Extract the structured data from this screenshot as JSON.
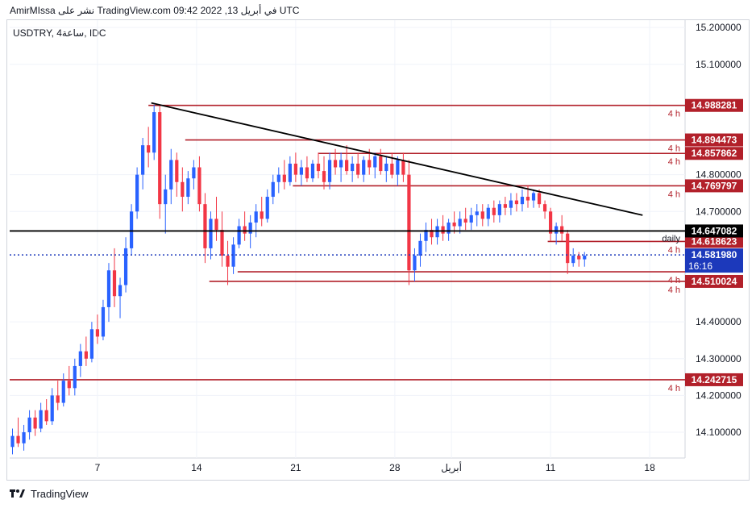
{
  "header": {
    "publish_line": "AmirMIssa نشر على TradingView.com في أبريل 13, 2022 09:42 UTC"
  },
  "footer": {
    "brand": "TradingView"
  },
  "chart_data": {
    "type": "candlestick",
    "title": "USDTRY, 4ساعة, IDC",
    "yaxis": {
      "ticks": [
        15.2,
        15.1,
        14.8,
        14.7,
        14.4,
        14.3,
        14.2,
        14.1
      ],
      "tick_labels": [
        "15.200000",
        "15.100000",
        "14.800000",
        "14.700000",
        "14.400000",
        "14.300000",
        "14.200000",
        "14.100000"
      ],
      "range": [
        14.03,
        15.22
      ]
    },
    "xaxis": {
      "tick_labels": [
        "7",
        "14",
        "21",
        "28",
        "أبريل",
        "11",
        "18"
      ],
      "ticks_day_index": [
        7,
        14,
        21,
        28,
        32,
        39,
        46
      ],
      "range_day_index": [
        0.8,
        48.5
      ]
    },
    "colors": {
      "up": "#2962ff",
      "down": "#f23645",
      "level": "#b2202a",
      "trend": "#000000",
      "price_line": "#1c39bb"
    },
    "levels": [
      {
        "price": 14.988281,
        "label": "14.988281",
        "tf": "4 h",
        "start_day": 10.6
      },
      {
        "price": 14.894473,
        "label": "14.894473",
        "tf": "4 h",
        "start_day": 13.2
      },
      {
        "price": 14.857862,
        "label": "14.857862",
        "tf": "4 h",
        "start_day": 22.6
      },
      {
        "price": 14.769797,
        "label": "14.769797",
        "tf": "4 h",
        "start_day": 20.8
      },
      {
        "price": 14.618623,
        "label": "14.618623",
        "tf": "4 h",
        "start_day": 38.8
      },
      {
        "price": 14.536,
        "label": "",
        "tf": "4 h",
        "start_day": 16.9
      },
      {
        "price": 14.510024,
        "label": "14.510024",
        "tf": "4 h",
        "start_day": 14.9
      },
      {
        "price": 14.242715,
        "label": "14.242715",
        "tf": "4 h",
        "start_day": 0.8
      }
    ],
    "daily_level": {
      "price": 14.647082,
      "label": "14.647082",
      "tf": "daily"
    },
    "current_price": {
      "price": 14.58198,
      "label": "14.581980",
      "countdown": "16:16"
    },
    "trendline": {
      "start": {
        "day": 10.8,
        "price": 14.995
      },
      "end": {
        "day": 45.5,
        "price": 14.69
      }
    },
    "candles": [
      {
        "day": 1.0,
        "o": 14.06,
        "h": 14.11,
        "l": 14.04,
        "c": 14.09
      },
      {
        "day": 1.4,
        "o": 14.09,
        "h": 14.14,
        "l": 14.06,
        "c": 14.07
      },
      {
        "day": 1.8,
        "o": 14.07,
        "h": 14.12,
        "l": 14.05,
        "c": 14.1
      },
      {
        "day": 2.2,
        "o": 14.1,
        "h": 14.16,
        "l": 14.08,
        "c": 14.14
      },
      {
        "day": 2.6,
        "o": 14.14,
        "h": 14.16,
        "l": 14.09,
        "c": 14.11
      },
      {
        "day": 3.0,
        "o": 14.11,
        "h": 14.18,
        "l": 14.1,
        "c": 14.16
      },
      {
        "day": 3.4,
        "o": 14.16,
        "h": 14.19,
        "l": 14.12,
        "c": 14.13
      },
      {
        "day": 3.8,
        "o": 14.13,
        "h": 14.22,
        "l": 14.12,
        "c": 14.2
      },
      {
        "day": 4.2,
        "o": 14.2,
        "h": 14.24,
        "l": 14.16,
        "c": 14.18
      },
      {
        "day": 4.6,
        "o": 14.18,
        "h": 14.26,
        "l": 14.17,
        "c": 14.24
      },
      {
        "day": 5.0,
        "o": 14.24,
        "h": 14.28,
        "l": 14.2,
        "c": 14.22
      },
      {
        "day": 5.4,
        "o": 14.22,
        "h": 14.3,
        "l": 14.2,
        "c": 14.28
      },
      {
        "day": 5.8,
        "o": 14.28,
        "h": 14.34,
        "l": 14.25,
        "c": 14.32
      },
      {
        "day": 6.2,
        "o": 14.32,
        "h": 14.36,
        "l": 14.28,
        "c": 14.3
      },
      {
        "day": 6.6,
        "o": 14.3,
        "h": 14.4,
        "l": 14.29,
        "c": 14.38
      },
      {
        "day": 7.0,
        "o": 14.38,
        "h": 14.42,
        "l": 14.34,
        "c": 14.36
      },
      {
        "day": 7.4,
        "o": 14.36,
        "h": 14.46,
        "l": 14.35,
        "c": 14.44
      },
      {
        "day": 7.8,
        "o": 14.44,
        "h": 14.56,
        "l": 14.4,
        "c": 14.54
      },
      {
        "day": 8.2,
        "o": 14.54,
        "h": 14.6,
        "l": 14.44,
        "c": 14.47
      },
      {
        "day": 8.6,
        "o": 14.47,
        "h": 14.52,
        "l": 14.41,
        "c": 14.5
      },
      {
        "day": 9.0,
        "o": 14.5,
        "h": 14.63,
        "l": 14.48,
        "c": 14.6
      },
      {
        "day": 9.4,
        "o": 14.6,
        "h": 14.72,
        "l": 14.58,
        "c": 14.7
      },
      {
        "day": 9.8,
        "o": 14.7,
        "h": 14.82,
        "l": 14.68,
        "c": 14.8
      },
      {
        "day": 10.2,
        "o": 14.8,
        "h": 14.9,
        "l": 14.76,
        "c": 14.88
      },
      {
        "day": 10.6,
        "o": 14.88,
        "h": 14.93,
        "l": 14.82,
        "c": 14.86
      },
      {
        "day": 11.0,
        "o": 14.86,
        "h": 14.99,
        "l": 14.84,
        "c": 14.97
      },
      {
        "day": 11.4,
        "o": 14.97,
        "h": 14.99,
        "l": 14.68,
        "c": 14.72
      },
      {
        "day": 11.8,
        "o": 14.72,
        "h": 14.8,
        "l": 14.64,
        "c": 14.76
      },
      {
        "day": 12.2,
        "o": 14.76,
        "h": 14.87,
        "l": 14.72,
        "c": 14.84
      },
      {
        "day": 12.6,
        "o": 14.84,
        "h": 14.86,
        "l": 14.74,
        "c": 14.78
      },
      {
        "day": 13.0,
        "o": 14.78,
        "h": 14.82,
        "l": 14.7,
        "c": 14.74
      },
      {
        "day": 13.4,
        "o": 14.74,
        "h": 14.81,
        "l": 14.72,
        "c": 14.79
      },
      {
        "day": 13.8,
        "o": 14.79,
        "h": 14.84,
        "l": 14.76,
        "c": 14.82
      },
      {
        "day": 14.2,
        "o": 14.82,
        "h": 14.85,
        "l": 14.7,
        "c": 14.72
      },
      {
        "day": 14.6,
        "o": 14.72,
        "h": 14.75,
        "l": 14.56,
        "c": 14.6
      },
      {
        "day": 15.0,
        "o": 14.6,
        "h": 14.7,
        "l": 14.57,
        "c": 14.68
      },
      {
        "day": 15.4,
        "o": 14.68,
        "h": 14.74,
        "l": 14.62,
        "c": 14.65
      },
      {
        "day": 15.8,
        "o": 14.65,
        "h": 14.7,
        "l": 14.55,
        "c": 14.58
      },
      {
        "day": 16.2,
        "o": 14.58,
        "h": 14.62,
        "l": 14.5,
        "c": 14.55
      },
      {
        "day": 16.6,
        "o": 14.55,
        "h": 14.63,
        "l": 14.53,
        "c": 14.61
      },
      {
        "day": 17.0,
        "o": 14.61,
        "h": 14.68,
        "l": 14.6,
        "c": 14.66
      },
      {
        "day": 17.4,
        "o": 14.66,
        "h": 14.7,
        "l": 14.62,
        "c": 14.64
      },
      {
        "day": 17.8,
        "o": 14.64,
        "h": 14.69,
        "l": 14.6,
        "c": 14.67
      },
      {
        "day": 18.2,
        "o": 14.67,
        "h": 14.72,
        "l": 14.63,
        "c": 14.7
      },
      {
        "day": 18.6,
        "o": 14.7,
        "h": 14.74,
        "l": 14.66,
        "c": 14.68
      },
      {
        "day": 19.0,
        "o": 14.68,
        "h": 14.76,
        "l": 14.67,
        "c": 14.74
      },
      {
        "day": 19.4,
        "o": 14.74,
        "h": 14.8,
        "l": 14.72,
        "c": 14.78
      },
      {
        "day": 19.8,
        "o": 14.78,
        "h": 14.82,
        "l": 14.75,
        "c": 14.8
      },
      {
        "day": 20.2,
        "o": 14.8,
        "h": 14.84,
        "l": 14.76,
        "c": 14.78
      },
      {
        "day": 20.6,
        "o": 14.78,
        "h": 14.85,
        "l": 14.77,
        "c": 14.83
      },
      {
        "day": 21.0,
        "o": 14.83,
        "h": 14.86,
        "l": 14.78,
        "c": 14.8
      },
      {
        "day": 21.4,
        "o": 14.8,
        "h": 14.84,
        "l": 14.77,
        "c": 14.82
      },
      {
        "day": 21.8,
        "o": 14.82,
        "h": 14.85,
        "l": 14.78,
        "c": 14.79
      },
      {
        "day": 22.2,
        "o": 14.79,
        "h": 14.84,
        "l": 14.78,
        "c": 14.83
      },
      {
        "day": 22.6,
        "o": 14.83,
        "h": 14.86,
        "l": 14.79,
        "c": 14.81
      },
      {
        "day": 23.0,
        "o": 14.81,
        "h": 14.85,
        "l": 14.76,
        "c": 14.78
      },
      {
        "day": 23.4,
        "o": 14.78,
        "h": 14.86,
        "l": 14.76,
        "c": 14.84
      },
      {
        "day": 23.8,
        "o": 14.84,
        "h": 14.87,
        "l": 14.8,
        "c": 14.82
      },
      {
        "day": 24.2,
        "o": 14.82,
        "h": 14.86,
        "l": 14.78,
        "c": 14.84
      },
      {
        "day": 24.6,
        "o": 14.84,
        "h": 14.88,
        "l": 14.8,
        "c": 14.81
      },
      {
        "day": 25.0,
        "o": 14.81,
        "h": 14.85,
        "l": 14.78,
        "c": 14.83
      },
      {
        "day": 25.4,
        "o": 14.83,
        "h": 14.86,
        "l": 14.79,
        "c": 14.8
      },
      {
        "day": 25.8,
        "o": 14.8,
        "h": 14.85,
        "l": 14.78,
        "c": 14.84
      },
      {
        "day": 26.2,
        "o": 14.84,
        "h": 14.87,
        "l": 14.8,
        "c": 14.82
      },
      {
        "day": 26.6,
        "o": 14.82,
        "h": 14.86,
        "l": 14.79,
        "c": 14.85
      },
      {
        "day": 27.0,
        "o": 14.85,
        "h": 14.87,
        "l": 14.8,
        "c": 14.81
      },
      {
        "day": 27.4,
        "o": 14.81,
        "h": 14.85,
        "l": 14.78,
        "c": 14.83
      },
      {
        "day": 27.8,
        "o": 14.83,
        "h": 14.86,
        "l": 14.79,
        "c": 14.8
      },
      {
        "day": 28.2,
        "o": 14.8,
        "h": 14.85,
        "l": 14.77,
        "c": 14.84
      },
      {
        "day": 28.6,
        "o": 14.84,
        "h": 14.86,
        "l": 14.78,
        "c": 14.8
      },
      {
        "day": 29.0,
        "o": 14.8,
        "h": 14.84,
        "l": 14.5,
        "c": 14.54
      },
      {
        "day": 29.4,
        "o": 14.54,
        "h": 14.6,
        "l": 14.51,
        "c": 14.58
      },
      {
        "day": 29.8,
        "o": 14.58,
        "h": 14.64,
        "l": 14.55,
        "c": 14.62
      },
      {
        "day": 30.2,
        "o": 14.62,
        "h": 14.67,
        "l": 14.59,
        "c": 14.65
      },
      {
        "day": 30.6,
        "o": 14.65,
        "h": 14.68,
        "l": 14.61,
        "c": 14.63
      },
      {
        "day": 31.0,
        "o": 14.63,
        "h": 14.68,
        "l": 14.61,
        "c": 14.66
      },
      {
        "day": 31.4,
        "o": 14.66,
        "h": 14.69,
        "l": 14.62,
        "c": 14.64
      },
      {
        "day": 31.8,
        "o": 14.64,
        "h": 14.68,
        "l": 14.62,
        "c": 14.67
      },
      {
        "day": 32.2,
        "o": 14.67,
        "h": 14.7,
        "l": 14.64,
        "c": 14.66
      },
      {
        "day": 32.6,
        "o": 14.66,
        "h": 14.7,
        "l": 14.64,
        "c": 14.68
      },
      {
        "day": 33.0,
        "o": 14.68,
        "h": 14.71,
        "l": 14.65,
        "c": 14.67
      },
      {
        "day": 33.4,
        "o": 14.67,
        "h": 14.71,
        "l": 14.65,
        "c": 14.69
      },
      {
        "day": 33.8,
        "o": 14.69,
        "h": 14.72,
        "l": 14.66,
        "c": 14.7
      },
      {
        "day": 34.2,
        "o": 14.7,
        "h": 14.72,
        "l": 14.66,
        "c": 14.68
      },
      {
        "day": 34.6,
        "o": 14.68,
        "h": 14.72,
        "l": 14.66,
        "c": 14.71
      },
      {
        "day": 35.0,
        "o": 14.71,
        "h": 14.73,
        "l": 14.67,
        "c": 14.69
      },
      {
        "day": 35.4,
        "o": 14.69,
        "h": 14.73,
        "l": 14.67,
        "c": 14.72
      },
      {
        "day": 35.8,
        "o": 14.72,
        "h": 14.74,
        "l": 14.69,
        "c": 14.71
      },
      {
        "day": 36.2,
        "o": 14.71,
        "h": 14.75,
        "l": 14.69,
        "c": 14.73
      },
      {
        "day": 36.6,
        "o": 14.73,
        "h": 14.75,
        "l": 14.7,
        "c": 14.72
      },
      {
        "day": 37.0,
        "o": 14.72,
        "h": 14.76,
        "l": 14.7,
        "c": 14.74
      },
      {
        "day": 37.4,
        "o": 14.74,
        "h": 14.77,
        "l": 14.71,
        "c": 14.73
      },
      {
        "day": 37.8,
        "o": 14.73,
        "h": 14.76,
        "l": 14.71,
        "c": 14.75
      },
      {
        "day": 38.2,
        "o": 14.75,
        "h": 14.76,
        "l": 14.71,
        "c": 14.72
      },
      {
        "day": 38.6,
        "o": 14.72,
        "h": 14.73,
        "l": 14.68,
        "c": 14.7
      },
      {
        "day": 39.0,
        "o": 14.7,
        "h": 14.71,
        "l": 14.62,
        "c": 14.64
      },
      {
        "day": 39.4,
        "o": 14.64,
        "h": 14.67,
        "l": 14.61,
        "c": 14.66
      },
      {
        "day": 39.8,
        "o": 14.66,
        "h": 14.69,
        "l": 14.62,
        "c": 14.64
      },
      {
        "day": 40.2,
        "o": 14.64,
        "h": 14.65,
        "l": 14.53,
        "c": 14.56
      },
      {
        "day": 40.6,
        "o": 14.56,
        "h": 14.6,
        "l": 14.55,
        "c": 14.58
      },
      {
        "day": 41.0,
        "o": 14.58,
        "h": 14.59,
        "l": 14.55,
        "c": 14.57
      },
      {
        "day": 41.4,
        "o": 14.57,
        "h": 14.59,
        "l": 14.55,
        "c": 14.58
      }
    ]
  }
}
